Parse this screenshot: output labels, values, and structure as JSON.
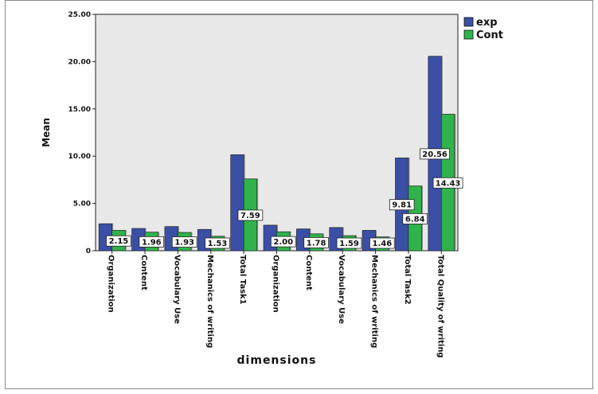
{
  "chart_data": {
    "type": "bar",
    "title": "",
    "xlabel": "dimensions",
    "ylabel": "Mean",
    "ylim": [
      0,
      25
    ],
    "yticks": [
      "0",
      "5.00",
      "10.00",
      "15.00",
      "20.00",
      "25.00"
    ],
    "categories": [
      "Organization",
      "Content",
      "Vocabulary Use",
      "Mechanics of writing",
      "Total Task1",
      "Organization",
      "Content",
      "Vocabulary Use",
      "Mechanics of writing",
      "Total Task2",
      "Total Quality of writing"
    ],
    "series": [
      {
        "name": "exp",
        "color": "#3a4fa5",
        "values": [
          2.85,
          2.35,
          2.55,
          2.25,
          10.15,
          2.7,
          2.3,
          2.45,
          2.15,
          9.81,
          20.56
        ]
      },
      {
        "name": "Cont",
        "color": "#2fb34a",
        "values": [
          2.15,
          1.96,
          1.93,
          1.53,
          7.59,
          2.0,
          1.78,
          1.59,
          1.46,
          6.84,
          14.43
        ]
      }
    ],
    "data_labels": [
      {
        "series": 1,
        "index": 0,
        "text": "2.15"
      },
      {
        "series": 1,
        "index": 1,
        "text": "1.96"
      },
      {
        "series": 1,
        "index": 2,
        "text": "1.93"
      },
      {
        "series": 1,
        "index": 3,
        "text": "1.53"
      },
      {
        "series": 1,
        "index": 4,
        "text": "7.59"
      },
      {
        "series": 1,
        "index": 5,
        "text": "2.00"
      },
      {
        "series": 1,
        "index": 6,
        "text": "1.78"
      },
      {
        "series": 1,
        "index": 7,
        "text": "1.59"
      },
      {
        "series": 1,
        "index": 8,
        "text": "1.46"
      },
      {
        "series": 0,
        "index": 9,
        "text": "9.81"
      },
      {
        "series": 1,
        "index": 9,
        "text": "6.84"
      },
      {
        "series": 0,
        "index": 10,
        "text": "20.56"
      },
      {
        "series": 1,
        "index": 10,
        "text": "14.43"
      }
    ],
    "grid": false,
    "legend": "top-right",
    "plot_background": "#e8e8e8"
  }
}
